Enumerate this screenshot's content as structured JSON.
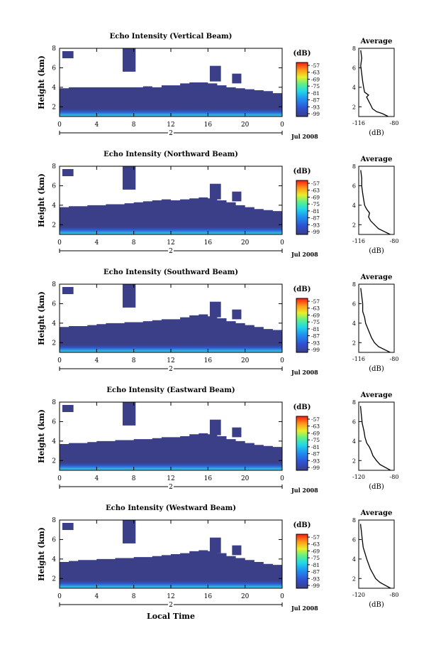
{
  "colors": {
    "background": "#ffffff",
    "echo_fill": "#3b3f88",
    "colorbar_bottom": "#3b3f88",
    "colorbar_top": "#ff1a12"
  },
  "chart_data": [
    {
      "type": "heatmap",
      "title": "Echo Intensity (Vertical Beam)",
      "ylabel": "Height (km)",
      "xlabel": "",
      "x_ticks": [
        "0",
        "4",
        "8",
        "12",
        "16",
        "20",
        "0"
      ],
      "y_ticks": [
        "2",
        "4",
        "6",
        "8"
      ],
      "xlim": [
        0,
        24
      ],
      "ylim": [
        1,
        8
      ],
      "date_marker": "2",
      "date_label": "Jul 2008",
      "colorbar": {
        "label": "(dB)",
        "ticks": [
          "-57",
          "-63",
          "-69",
          "-75",
          "-81",
          "-87",
          "-93",
          "-99"
        ]
      },
      "echo_top_km": [
        3.9,
        4.0,
        4.0,
        4.0,
        4.0,
        4.0,
        4.0,
        4.0,
        4.0,
        4.1,
        4.0,
        4.2,
        4.2,
        4.4,
        4.5,
        4.5,
        4.4,
        4.2,
        4.0,
        3.9,
        3.8,
        3.7,
        3.6,
        3.4
      ],
      "average_panel": {
        "title": "Average",
        "xlabel": "(dB)",
        "x_ticks": [
          "-116",
          "-80"
        ],
        "y_ticks": [
          "2",
          "4",
          "6",
          "8"
        ],
        "xlim": [
          -116,
          -80
        ],
        "ylim": [
          1,
          8
        ],
        "profile": [
          [
            -86,
            1.0
          ],
          [
            -92,
            1.3
          ],
          [
            -98,
            1.5
          ],
          [
            -102,
            1.8
          ],
          [
            -104,
            2.2
          ],
          [
            -106,
            2.6
          ],
          [
            -108,
            3.0
          ],
          [
            -106,
            3.2
          ],
          [
            -110,
            3.5
          ],
          [
            -111,
            4.0
          ],
          [
            -112,
            4.6
          ],
          [
            -113,
            5.4
          ],
          [
            -114,
            6.2
          ],
          [
            -113,
            7.0
          ],
          [
            -114,
            7.8
          ]
        ]
      }
    },
    {
      "type": "heatmap",
      "title": "Echo Intensity (Northward Beam)",
      "ylabel": "Height (km)",
      "xlabel": "",
      "x_ticks": [
        "0",
        "4",
        "8",
        "12",
        "16",
        "20",
        "0"
      ],
      "y_ticks": [
        "2",
        "4",
        "6",
        "8"
      ],
      "xlim": [
        0,
        24
      ],
      "ylim": [
        1,
        8
      ],
      "date_marker": "2",
      "date_label": "Jul 2008",
      "colorbar": {
        "label": "(dB)",
        "ticks": [
          "-57",
          "-63",
          "-69",
          "-75",
          "-81",
          "-87",
          "-93",
          "-99"
        ]
      },
      "echo_top_km": [
        3.8,
        3.9,
        3.9,
        4.0,
        4.0,
        4.1,
        4.1,
        4.2,
        4.3,
        4.4,
        4.5,
        4.6,
        4.5,
        4.6,
        4.7,
        4.8,
        4.7,
        4.5,
        4.3,
        4.0,
        3.8,
        3.6,
        3.5,
        3.4
      ],
      "average_panel": {
        "title": "Average",
        "xlabel": "(dB)",
        "x_ticks": [
          "-116",
          "-80"
        ],
        "y_ticks": [
          "2",
          "4",
          "6",
          "8"
        ],
        "xlim": [
          -116,
          -80
        ],
        "ylim": [
          1,
          8
        ],
        "profile": [
          [
            -84,
            1.0
          ],
          [
            -90,
            1.3
          ],
          [
            -96,
            1.6
          ],
          [
            -100,
            2.0
          ],
          [
            -104,
            2.4
          ],
          [
            -106,
            2.8
          ],
          [
            -105,
            3.2
          ],
          [
            -108,
            3.6
          ],
          [
            -110,
            4.0
          ],
          [
            -111,
            4.6
          ],
          [
            -112,
            5.2
          ],
          [
            -113,
            6.0
          ],
          [
            -113,
            6.8
          ],
          [
            -114,
            7.6
          ]
        ]
      }
    },
    {
      "type": "heatmap",
      "title": "Echo Intensity (Southward Beam)",
      "ylabel": "Height (km)",
      "xlabel": "",
      "x_ticks": [
        "0",
        "4",
        "8",
        "12",
        "16",
        "20",
        "0"
      ],
      "y_ticks": [
        "2",
        "4",
        "6",
        "8"
      ],
      "xlim": [
        0,
        24
      ],
      "ylim": [
        1,
        8
      ],
      "date_marker": "2",
      "date_label": "Jul 2008",
      "colorbar": {
        "label": "(dB)",
        "ticks": [
          "-57",
          "-63",
          "-69",
          "-75",
          "-81",
          "-87",
          "-93",
          "-99"
        ]
      },
      "echo_top_km": [
        3.6,
        3.7,
        3.7,
        3.8,
        3.9,
        4.0,
        4.0,
        4.1,
        4.1,
        4.2,
        4.3,
        4.4,
        4.4,
        4.6,
        4.8,
        4.9,
        4.7,
        4.5,
        4.2,
        4.0,
        3.8,
        3.6,
        3.4,
        3.3
      ],
      "average_panel": {
        "title": "Average",
        "xlabel": "(dB)",
        "x_ticks": [
          "-116",
          "-80"
        ],
        "y_ticks": [
          "2",
          "4",
          "6",
          "8"
        ],
        "xlim": [
          -116,
          -80
        ],
        "ylim": [
          1,
          8
        ],
        "profile": [
          [
            -84,
            1.0
          ],
          [
            -90,
            1.3
          ],
          [
            -96,
            1.6
          ],
          [
            -100,
            2.0
          ],
          [
            -103,
            2.5
          ],
          [
            -105,
            3.0
          ],
          [
            -107,
            3.5
          ],
          [
            -109,
            4.0
          ],
          [
            -110,
            4.6
          ],
          [
            -112,
            5.2
          ],
          [
            -112,
            6.0
          ],
          [
            -113,
            6.8
          ],
          [
            -114,
            7.6
          ]
        ]
      }
    },
    {
      "type": "heatmap",
      "title": "Echo Intensity (Eastward Beam)",
      "ylabel": "Height (km)",
      "xlabel": "",
      "x_ticks": [
        "0",
        "4",
        "8",
        "12",
        "16",
        "20",
        "0"
      ],
      "y_ticks": [
        "2",
        "4",
        "6",
        "8"
      ],
      "xlim": [
        0,
        24
      ],
      "ylim": [
        1,
        8
      ],
      "date_marker": "2",
      "date_label": "Jul 2008",
      "colorbar": {
        "label": "(dB)",
        "ticks": [
          "-57",
          "-63",
          "-69",
          "-75",
          "-81",
          "-87",
          "-93",
          "-99"
        ]
      },
      "echo_top_km": [
        3.7,
        3.8,
        3.8,
        3.9,
        4.0,
        4.0,
        4.1,
        4.1,
        4.2,
        4.2,
        4.3,
        4.4,
        4.4,
        4.5,
        4.7,
        4.8,
        4.7,
        4.5,
        4.2,
        4.0,
        3.8,
        3.6,
        3.5,
        3.4
      ],
      "average_panel": {
        "title": "Average",
        "xlabel": "(dB)",
        "x_ticks": [
          "-120",
          "-80"
        ],
        "y_ticks": [
          "2",
          "4",
          "6",
          "8"
        ],
        "xlim": [
          -120,
          -80
        ],
        "ylim": [
          1,
          8
        ],
        "profile": [
          [
            -84,
            1.0
          ],
          [
            -90,
            1.3
          ],
          [
            -96,
            1.6
          ],
          [
            -100,
            2.0
          ],
          [
            -104,
            2.5
          ],
          [
            -106,
            3.0
          ],
          [
            -108,
            3.4
          ],
          [
            -111,
            3.8
          ],
          [
            -113,
            4.4
          ],
          [
            -114,
            5.0
          ],
          [
            -116,
            5.8
          ],
          [
            -117,
            6.6
          ],
          [
            -118,
            7.6
          ]
        ]
      }
    },
    {
      "type": "heatmap",
      "title": "Echo Intensity (Westward Beam)",
      "ylabel": "Height (km)",
      "xlabel": "Local Time",
      "x_ticks": [
        "0",
        "4",
        "8",
        "12",
        "16",
        "20",
        "0"
      ],
      "y_ticks": [
        "2",
        "4",
        "6",
        "8"
      ],
      "xlim": [
        0,
        24
      ],
      "ylim": [
        1,
        8
      ],
      "date_marker": "2",
      "date_label": "Jul 2008",
      "colorbar": {
        "label": "(dB)",
        "ticks": [
          "-57",
          "-63",
          "-69",
          "-75",
          "-81",
          "-87",
          "-93",
          "-99"
        ]
      },
      "echo_top_km": [
        3.7,
        3.8,
        3.9,
        3.9,
        4.0,
        4.0,
        4.1,
        4.1,
        4.2,
        4.2,
        4.3,
        4.4,
        4.5,
        4.6,
        4.8,
        4.9,
        4.8,
        4.6,
        4.3,
        4.1,
        3.9,
        3.7,
        3.5,
        3.4
      ],
      "average_panel": {
        "title": "Average",
        "xlabel": "(dB)",
        "x_ticks": [
          "-120",
          "-80"
        ],
        "y_ticks": [
          "2",
          "4",
          "6",
          "8"
        ],
        "xlim": [
          -120,
          -80
        ],
        "ylim": [
          1,
          8
        ],
        "profile": [
          [
            -84,
            1.0
          ],
          [
            -90,
            1.3
          ],
          [
            -96,
            1.6
          ],
          [
            -101,
            2.0
          ],
          [
            -104,
            2.5
          ],
          [
            -107,
            3.0
          ],
          [
            -109,
            3.5
          ],
          [
            -111,
            4.0
          ],
          [
            -113,
            4.6
          ],
          [
            -115,
            5.2
          ],
          [
            -116,
            6.0
          ],
          [
            -117,
            6.8
          ],
          [
            -118,
            7.6
          ]
        ]
      }
    }
  ]
}
